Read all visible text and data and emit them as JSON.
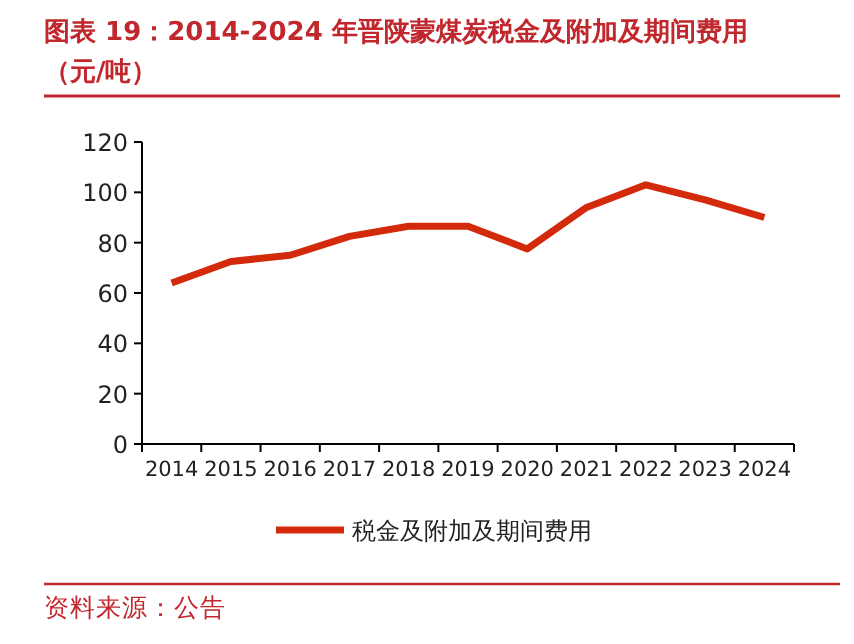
{
  "chart_data": {
    "type": "line",
    "title": "图表 19：2014-2024 年晋陕蒙煤炭税金及附加及期间费用（元/吨）",
    "categories": [
      "2014",
      "2015",
      "2016",
      "2017",
      "2018",
      "2019",
      "2020",
      "2021",
      "2022",
      "2023",
      "2024"
    ],
    "series": [
      {
        "name": "税金及附加及期间费用",
        "color": "#d42a0c",
        "values": [
          64,
          72.5,
          75,
          82.5,
          86.5,
          86.5,
          77.5,
          94,
          103,
          97,
          90
        ]
      }
    ],
    "ylim": [
      0,
      120
    ],
    "yticks": [
      0,
      20,
      40,
      60,
      80,
      100,
      120
    ],
    "legend": "bottom",
    "grid": false,
    "annotations": [
      "资料来源：公告"
    ]
  }
}
